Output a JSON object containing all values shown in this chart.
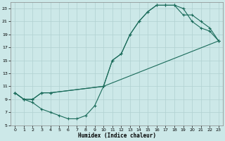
{
  "xlabel": "Humidex (Indice chaleur)",
  "bg_color": "#cce8e8",
  "grid_color": "#b0d0d0",
  "line_color": "#1a6b5a",
  "line1": {
    "x": [
      0,
      1,
      2,
      3,
      4,
      10,
      11,
      12,
      13,
      14,
      15,
      16,
      17,
      18,
      19,
      20,
      21,
      22,
      23
    ],
    "y": [
      10,
      9,
      9,
      10,
      10,
      11,
      15,
      16,
      19,
      21,
      22.5,
      23.5,
      23.5,
      23.5,
      23,
      21,
      20,
      19.5,
      18
    ]
  },
  "line2": {
    "x": [
      0,
      1,
      2,
      3,
      4,
      10,
      11,
      12,
      13,
      14,
      15,
      16,
      17,
      18,
      19,
      20,
      21,
      22,
      23
    ],
    "y": [
      10,
      9,
      9,
      10,
      10,
      11,
      15,
      16,
      19,
      21,
      22.5,
      23.5,
      23.5,
      23.5,
      22,
      22,
      21,
      20,
      18
    ]
  },
  "line3": {
    "x": [
      0,
      1,
      2,
      3,
      4,
      5,
      6,
      7,
      8,
      9,
      10,
      23
    ],
    "y": [
      10,
      9,
      8.5,
      7.5,
      7,
      6.5,
      6,
      6,
      6.5,
      8,
      11,
      18
    ]
  },
  "xlim": [
    -0.5,
    23.5
  ],
  "ylim": [
    5,
    24
  ],
  "xticks": [
    0,
    1,
    2,
    3,
    4,
    5,
    6,
    7,
    8,
    9,
    10,
    11,
    12,
    13,
    14,
    15,
    16,
    17,
    18,
    19,
    20,
    21,
    22,
    23
  ],
  "yticks": [
    5,
    7,
    9,
    11,
    13,
    15,
    17,
    19,
    21,
    23
  ]
}
